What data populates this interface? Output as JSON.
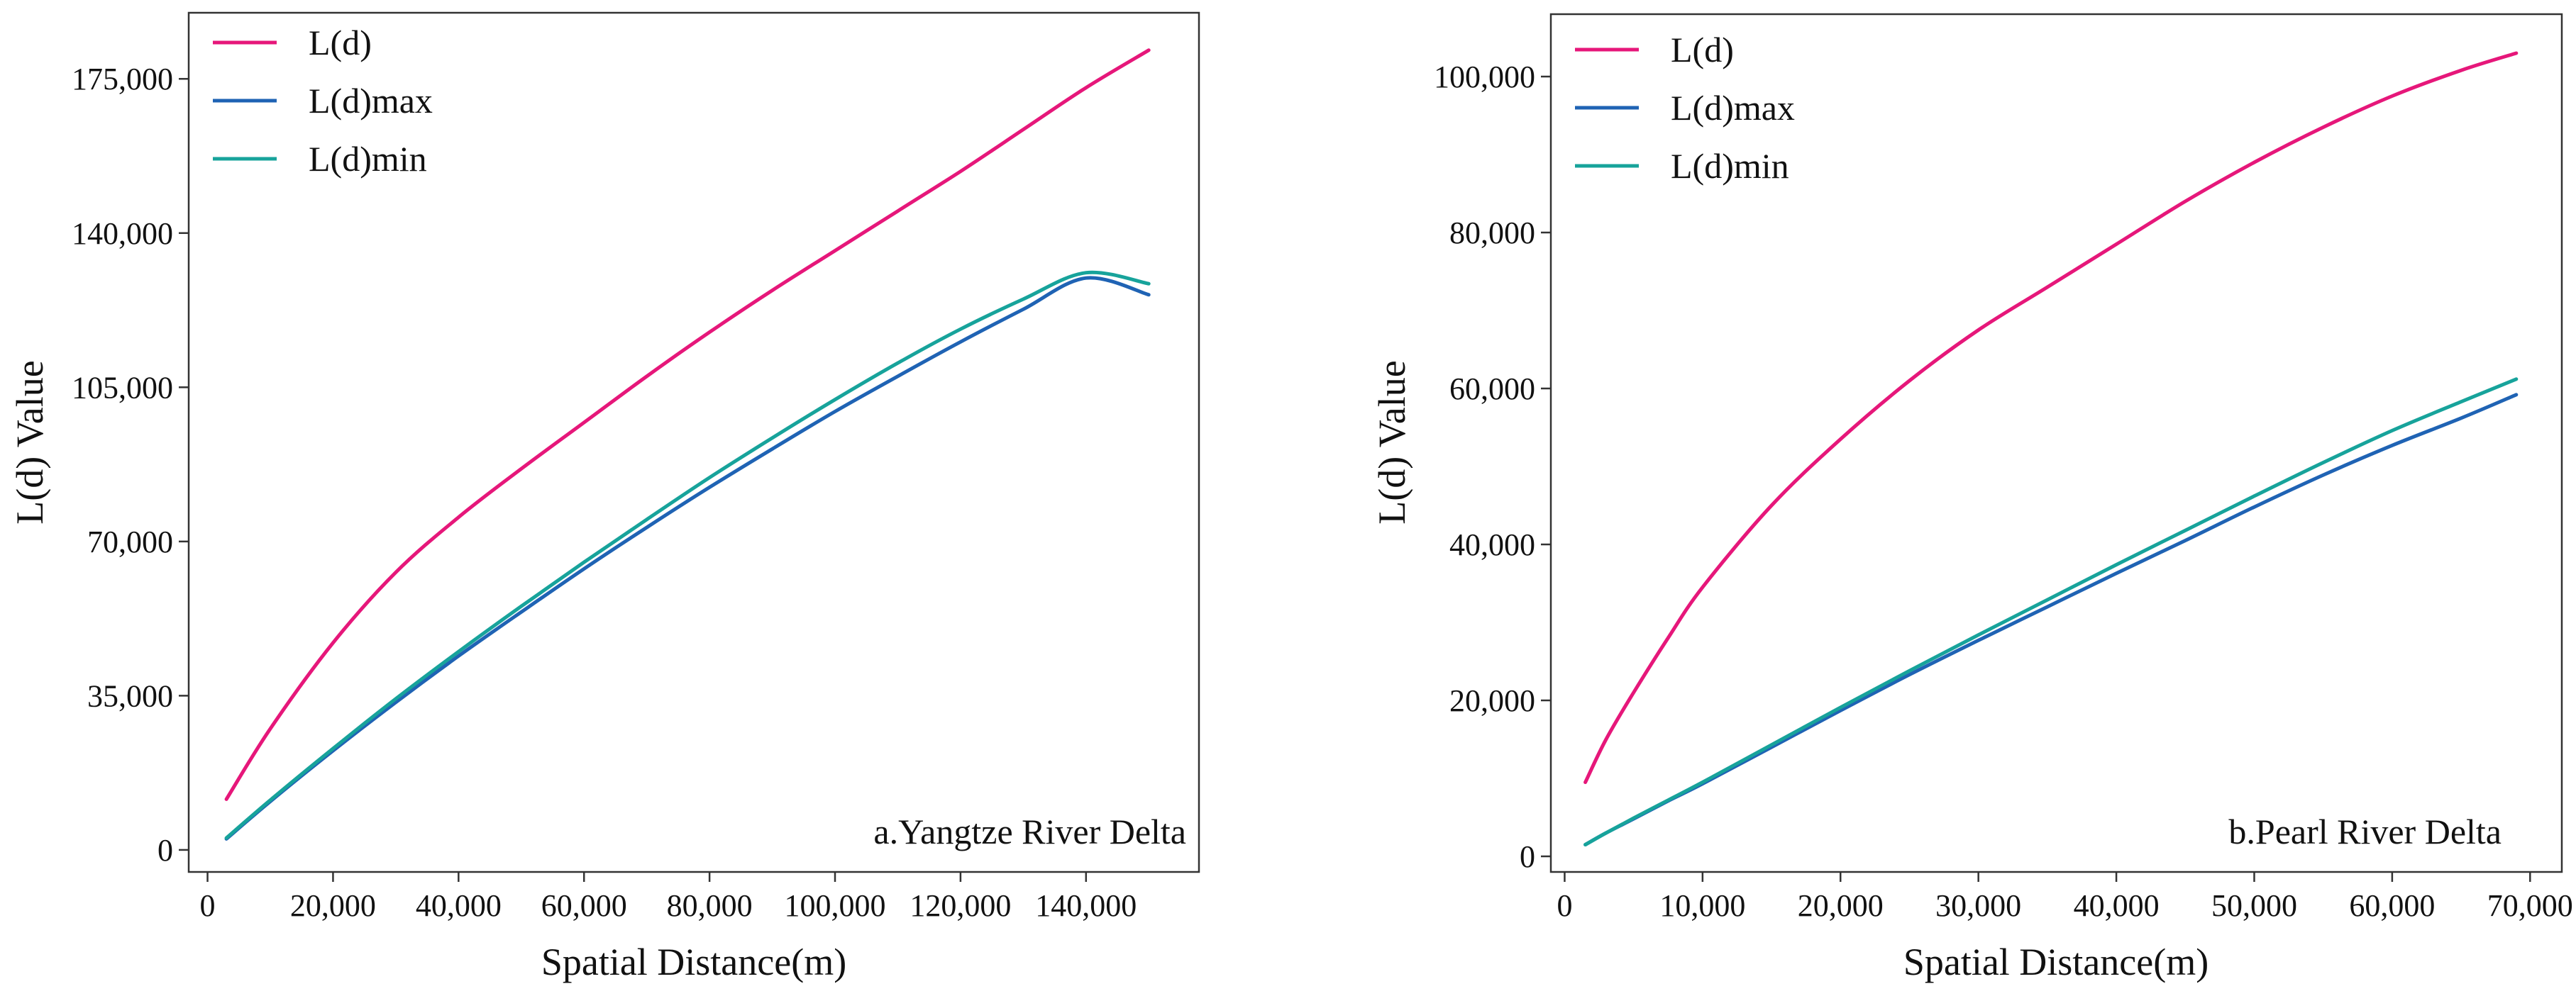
{
  "chart_data": [
    {
      "type": "line",
      "annotation": "a.Yangtze River Delta",
      "xlabel": "Spatial Distance(m)",
      "ylabel": "L(d) Value",
      "xlim": [
        -3000,
        158000
      ],
      "ylim": [
        -5000,
        190000
      ],
      "xticks": [
        0,
        20000,
        40000,
        60000,
        80000,
        100000,
        120000,
        140000
      ],
      "xtick_labels": [
        "0",
        "20,000",
        "40,000",
        "60,000",
        "80,000",
        "100,000",
        "120,000",
        "140,000"
      ],
      "yticks": [
        0,
        35000,
        70000,
        105000,
        140000,
        175000
      ],
      "ytick_labels": [
        "0",
        "35,000",
        "70,000",
        "105,000",
        "140,000",
        "175,000"
      ],
      "legend": "top-left",
      "x": [
        3000,
        10000,
        20000,
        30000,
        40000,
        50000,
        60000,
        70000,
        80000,
        90000,
        100000,
        110000,
        120000,
        130000,
        140000,
        150000
      ],
      "series": [
        {
          "name": "L(d)",
          "color": "#E6177A",
          "values": [
            11500,
            27500,
            47000,
            63000,
            75500,
            86500,
            97000,
            107500,
            117500,
            127000,
            136000,
            145000,
            154000,
            163500,
            173000,
            181500
          ]
        },
        {
          "name": "L(d)max",
          "color": "#1F63B4",
          "values": [
            2500,
            11000,
            22500,
            33500,
            44000,
            54000,
            63800,
            73200,
            82300,
            91000,
            99500,
            107500,
            115300,
            122700,
            129800,
            126000
          ]
        },
        {
          "name": "L(d)min",
          "color": "#17A39B",
          "values": [
            2700,
            11300,
            23000,
            34300,
            45000,
            55300,
            65300,
            75000,
            84500,
            93500,
            102200,
            110500,
            118200,
            125000,
            131000,
            128500
          ]
        }
      ]
    },
    {
      "type": "line",
      "annotation": "b.Pearl River Delta",
      "xlabel": "Spatial Distance(m)",
      "ylabel": "L(d) Value",
      "xlim": [
        -1000,
        72300
      ],
      "ylim": [
        -2000,
        108000
      ],
      "xticks": [
        0,
        10000,
        20000,
        30000,
        40000,
        50000,
        60000,
        70000
      ],
      "xtick_labels": [
        "0",
        "10,000",
        "20,000",
        "30,000",
        "40,000",
        "50,000",
        "60,000",
        "70,000"
      ],
      "yticks": [
        0,
        20000,
        40000,
        60000,
        80000,
        100000
      ],
      "ytick_labels": [
        "0",
        "20,000",
        "40,000",
        "60,000",
        "80,000",
        "100,000"
      ],
      "legend": "top-left",
      "x": [
        1500,
        3000,
        5000,
        7500,
        10000,
        15000,
        20000,
        25000,
        30000,
        35000,
        40000,
        45000,
        50000,
        55000,
        60000,
        65000,
        69000
      ],
      "series": [
        {
          "name": "L(d)",
          "color": "#E6177A",
          "values": [
            9500,
            15000,
            21000,
            28000,
            34500,
            45000,
            53500,
            61000,
            67500,
            73000,
            78500,
            84000,
            89000,
            93500,
            97500,
            100800,
            103000
          ]
        },
        {
          "name": "L(d)max",
          "color": "#1F63B4",
          "values": [
            1500,
            3000,
            4800,
            7100,
            9300,
            14000,
            18700,
            23300,
            27700,
            32000,
            36300,
            40500,
            44800,
            48900,
            52700,
            56200,
            59200
          ]
        },
        {
          "name": "L(d)min",
          "color": "#17A39B",
          "values": [
            1500,
            3000,
            4900,
            7200,
            9500,
            14300,
            19100,
            23800,
            28400,
            32900,
            37400,
            41800,
            46200,
            50500,
            54600,
            58300,
            61200
          ]
        }
      ]
    }
  ]
}
